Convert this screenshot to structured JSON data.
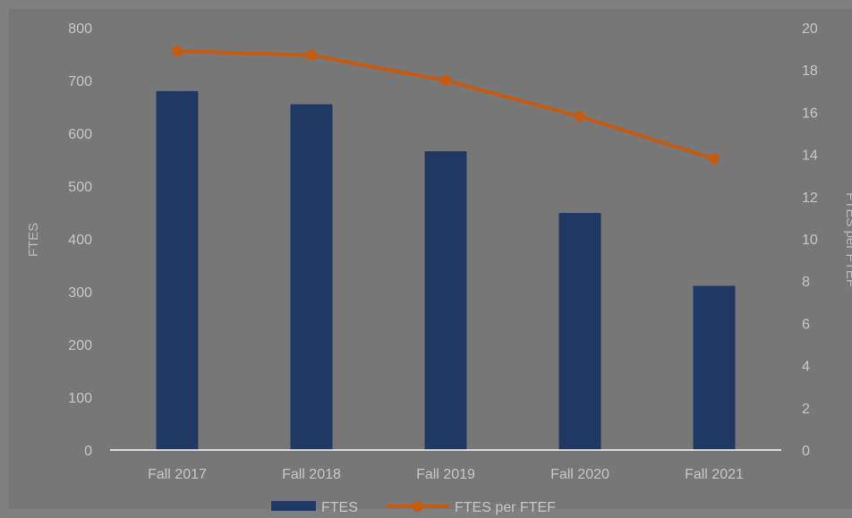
{
  "chart_data": {
    "type": "bar",
    "categories": [
      "Fall 2017",
      "Fall 2018",
      "Fall 2019",
      "Fall 2020",
      "Fall 2021"
    ],
    "series": [
      {
        "name": "FTES",
        "type": "bar",
        "axis": "left",
        "color": "#203864",
        "values": [
          680,
          655,
          566,
          449,
          311
        ]
      },
      {
        "name": "FTES per FTEF",
        "type": "line",
        "axis": "right",
        "color": "#c55a11",
        "values": [
          18.9,
          18.7,
          17.5,
          15.8,
          13.8
        ]
      }
    ],
    "title": "",
    "ylabel": "FTES",
    "y2label": "FTES per FTEF",
    "ylim": [
      0,
      800
    ],
    "y2lim": [
      0,
      20
    ],
    "yticks": [
      "0",
      "100",
      "200",
      "300",
      "400",
      "500",
      "600",
      "700",
      "800"
    ],
    "y2ticks": [
      "0",
      "2",
      "4",
      "6",
      "8",
      "10",
      "12",
      "14",
      "16",
      "18",
      "20"
    ],
    "grid": false,
    "legend": "bottom",
    "background_color": "#7f7f7f",
    "axis_color": "#ffffff",
    "text_color": "#c8c8c8"
  }
}
